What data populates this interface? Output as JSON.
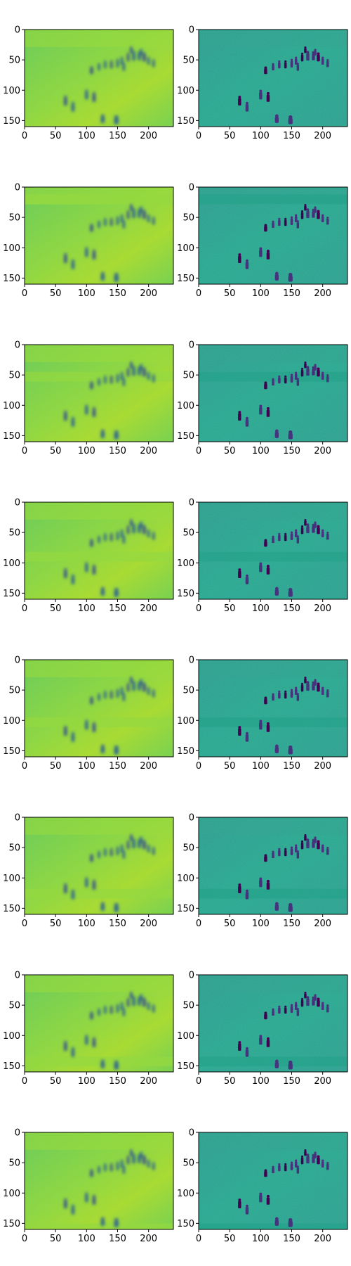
{
  "figure": {
    "rows": 8,
    "columns": 2,
    "colors": {
      "viridis_dark": "#440154",
      "viridis_blue": "#31688e",
      "viridis_teal": "#21908d",
      "viridis_green": "#35b779",
      "viridis_lime": "#8fd744",
      "viridis_yellow": "#fde725",
      "axes_edge": "#000000"
    },
    "x_axis": {
      "ticks": [
        0,
        50,
        100,
        150,
        200
      ],
      "range": [
        0,
        240
      ]
    },
    "y_axis": {
      "ticks": [
        0,
        50,
        100,
        150
      ],
      "range": [
        0,
        160
      ]
    },
    "panels": [
      {
        "row": 1,
        "column": 1,
        "style": "blurred-reconstruction"
      },
      {
        "row": 1,
        "column": 2,
        "style": "sharp-reconstruction"
      },
      {
        "row": 2,
        "column": 1,
        "style": "blurred-reconstruction"
      },
      {
        "row": 2,
        "column": 2,
        "style": "sharp-reconstruction"
      },
      {
        "row": 3,
        "column": 1,
        "style": "blurred-reconstruction"
      },
      {
        "row": 3,
        "column": 2,
        "style": "sharp-reconstruction"
      },
      {
        "row": 4,
        "column": 1,
        "style": "blurred-reconstruction"
      },
      {
        "row": 4,
        "column": 2,
        "style": "sharp-reconstruction"
      },
      {
        "row": 5,
        "column": 1,
        "style": "blurred-reconstruction"
      },
      {
        "row": 5,
        "column": 2,
        "style": "sharp-reconstruction"
      },
      {
        "row": 6,
        "column": 1,
        "style": "blurred-reconstruction"
      },
      {
        "row": 6,
        "column": 2,
        "style": "sharp-reconstruction"
      },
      {
        "row": 7,
        "column": 1,
        "style": "blurred-reconstruction"
      },
      {
        "row": 7,
        "column": 2,
        "style": "sharp-reconstruction"
      },
      {
        "row": 8,
        "column": 1,
        "style": "blurred-reconstruction"
      },
      {
        "row": 8,
        "column": 2,
        "style": "sharp-reconstruction"
      }
    ]
  }
}
